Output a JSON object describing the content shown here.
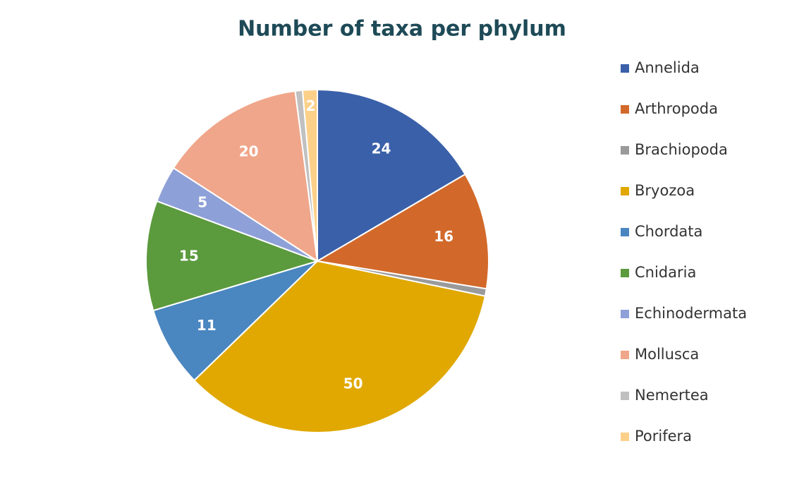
{
  "chart_data": {
    "type": "pie",
    "title": "Number of taxa per phylum",
    "categories": [
      "Annelida",
      "Arthropoda",
      "Brachiopoda",
      "Bryozoa",
      "Chordata",
      "Cnidaria",
      "Echinodermata",
      "Mollusca",
      "Nemertea",
      "Porifera"
    ],
    "values": [
      24,
      16,
      1,
      50,
      11,
      15,
      5,
      20,
      1,
      2
    ],
    "labeled": [
      true,
      true,
      false,
      true,
      true,
      true,
      true,
      true,
      false,
      true
    ],
    "colors": [
      "#3a60a9",
      "#d2692a",
      "#9a9a9a",
      "#e0a800",
      "#4a86c0",
      "#5b9a3d",
      "#8ea0d8",
      "#f0a68a",
      "#c0c0c0",
      "#fdd08a"
    ],
    "legend": "right"
  }
}
